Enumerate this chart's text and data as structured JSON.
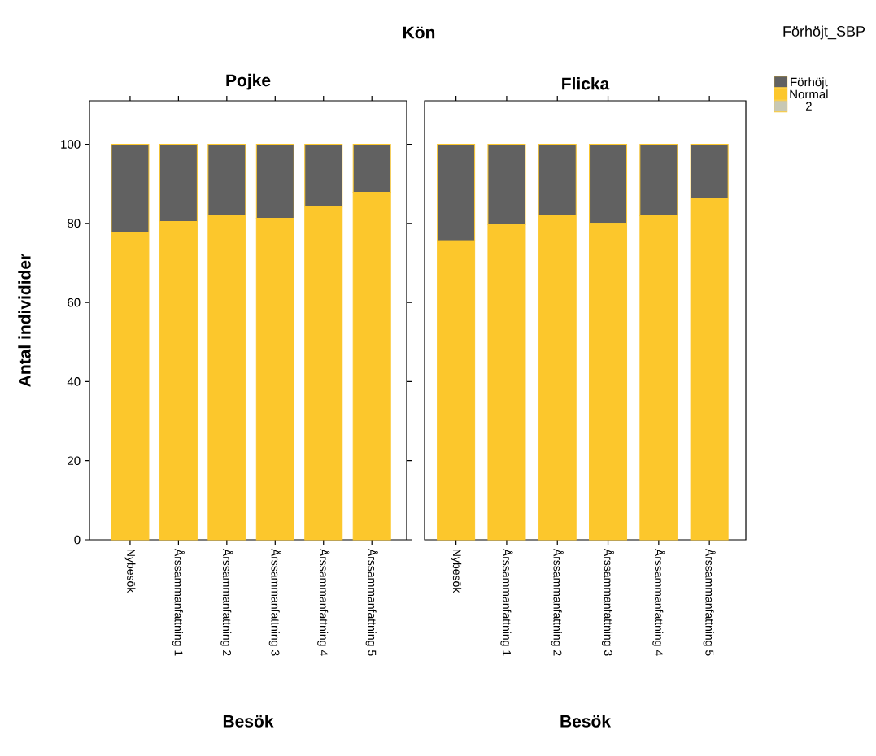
{
  "chart_data": [
    {
      "type": "bar",
      "title": "Pojke",
      "xlabel": "Besök",
      "ylabel": "Antal individider",
      "annotations": [
        "Kön"
      ],
      "stacked": true,
      "categories": [
        "Nybesök",
        "Årssammanfattning 1",
        "Årssammanfattning 2",
        "Årssammanfattning 3",
        "Årssammanfattning 4",
        "Årssammanfattning 5"
      ],
      "ylim": [
        0,
        111
      ],
      "yticks": [
        0,
        20,
        40,
        60,
        80,
        100
      ],
      "grid": false,
      "series": [
        {
          "color": "#fcc72c",
          "values": [
            77.8,
            80.5,
            82.1,
            81.3,
            84.3,
            87.9
          ]
        },
        {
          "color": "#616161",
          "values": [
            22.2,
            19.5,
            17.9,
            18.7,
            15.7,
            12.1
          ]
        },
        {
          "color": "#c8c8b4",
          "values": [
            0,
            0,
            0,
            0,
            0,
            0
          ]
        }
      ]
    },
    {
      "type": "bar",
      "title": "Flicka",
      "xlabel": "Besök",
      "legend_title": "Förhöjt_SBP",
      "legend": "top right",
      "stacked": true,
      "tick_labels": "x",
      "categories": [
        "Nybesök",
        "Årssammanfattning 1",
        "Årssammanfattning 2",
        "Årssammanfattning 3",
        "Årssammanfattning 4",
        "Årssammanfattning 5"
      ],
      "ylim": [
        0,
        111
      ],
      "yticks": [
        0,
        20,
        40,
        60,
        80,
        100
      ],
      "grid": false,
      "series": [
        {
          "name": "Normal",
          "color": "#fcc72c",
          "values": [
            75.6,
            79.7,
            82.1,
            80.0,
            81.9,
            86.4
          ]
        },
        {
          "name": "Förhöjt",
          "color": "#616161",
          "values": [
            24.4,
            20.3,
            17.9,
            20.0,
            18.1,
            13.6
          ]
        },
        {
          "name": "2",
          "color": "#c8c8b4",
          "values": [
            0,
            0,
            0,
            0,
            0,
            0
          ]
        }
      ]
    }
  ]
}
